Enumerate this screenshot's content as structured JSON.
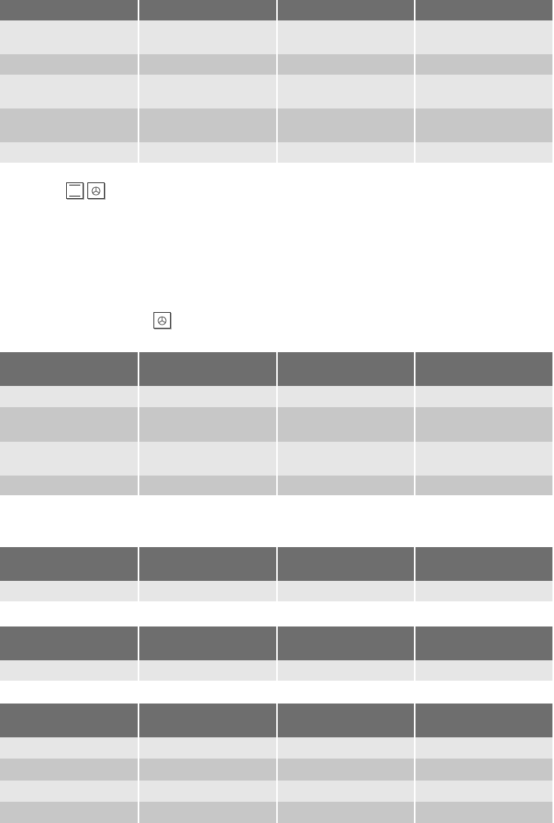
{
  "colors": {
    "header": "#6e6e6e",
    "row_light": "#e6e6e6",
    "row_dark": "#c7c7c7"
  },
  "tables": [
    {
      "rows": [
        {
          "kind": "header",
          "h": 26
        },
        {
          "kind": "light",
          "h": 43
        },
        {
          "kind": "dark",
          "h": 26
        },
        {
          "kind": "light",
          "h": 43
        },
        {
          "kind": "dark",
          "h": 43
        },
        {
          "kind": "light",
          "h": 26
        }
      ]
    },
    {
      "rows": [
        {
          "kind": "header",
          "h": 43
        },
        {
          "kind": "light",
          "h": 27
        },
        {
          "kind": "dark",
          "h": 44
        },
        {
          "kind": "light",
          "h": 43
        },
        {
          "kind": "dark",
          "h": 25
        }
      ]
    },
    {
      "rows": [
        {
          "kind": "header",
          "h": 43
        },
        {
          "kind": "light",
          "h": 26
        }
      ]
    },
    {
      "rows": [
        {
          "kind": "header",
          "h": 43
        },
        {
          "kind": "light",
          "h": 26
        }
      ]
    },
    {
      "rows": [
        {
          "kind": "header",
          "h": 43
        },
        {
          "kind": "light",
          "h": 27
        },
        {
          "kind": "dark",
          "h": 28
        },
        {
          "kind": "light",
          "h": 27
        },
        {
          "kind": "dark",
          "h": 27
        }
      ]
    }
  ],
  "icons": [
    "top-bottom-heat-icon",
    "fan-icon",
    "fan-icon"
  ]
}
